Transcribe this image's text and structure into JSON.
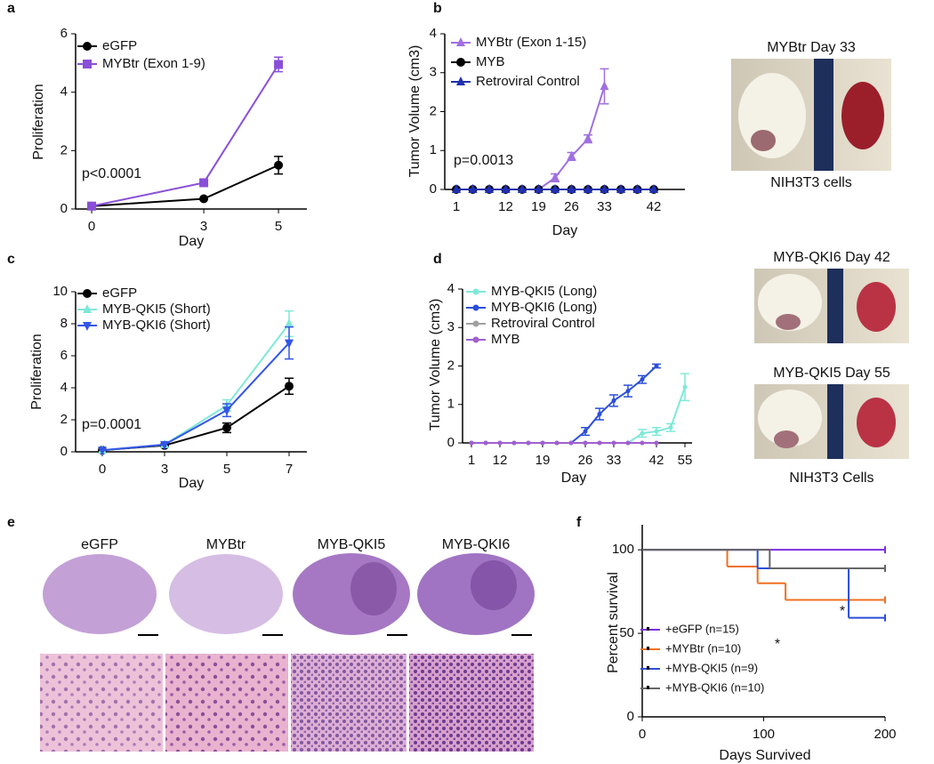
{
  "chart_data": [
    {
      "type": "line",
      "panel": "a",
      "xlabel": "Day",
      "ylabel": "Proliferation",
      "annotation": "p<0.0001",
      "x": [
        0,
        3,
        5
      ],
      "xlim": [
        -0.43,
        5.76
      ],
      "xticks": [
        0,
        3,
        5
      ],
      "ylim": [
        0,
        6
      ],
      "yticks": [
        0,
        2,
        4,
        6
      ],
      "series": [
        {
          "name": "eGFP",
          "color": "#000000",
          "marker": "circle",
          "values": [
            0.1,
            0.35,
            1.5
          ],
          "errors": [
            null,
            null,
            0.3
          ]
        },
        {
          "name": "MYBtr (Exon 1-9)",
          "color": "#8a4fd8",
          "marker": "square",
          "values": [
            0.1,
            0.9,
            4.95
          ],
          "errors": [
            null,
            null,
            0.25
          ]
        }
      ]
    },
    {
      "type": "line",
      "panel": "b",
      "xlabel": "Day",
      "ylabel": "Tumor Volume (cm3)",
      "annotation": "p=0.0013",
      "categories": [
        "1",
        null,
        null,
        "12",
        null,
        "19",
        null,
        "26",
        null,
        "33",
        null,
        null,
        "42"
      ],
      "ylim": [
        0,
        4
      ],
      "yticks": [
        0,
        1,
        2,
        3,
        4
      ],
      "series": [
        {
          "name": "MYBtr (Exon 1-15)",
          "color": "#a070e0",
          "marker": "triangle",
          "values": [
            0,
            0,
            0,
            0,
            0,
            0,
            0.3,
            0.85,
            1.3,
            2.65,
            null,
            null,
            null
          ],
          "errors": [
            null,
            null,
            null,
            null,
            null,
            null,
            0.1,
            0.1,
            0.1,
            0.45,
            null,
            null,
            null
          ]
        },
        {
          "name": "MYB",
          "color": "#000000",
          "marker": "circle",
          "values": [
            0,
            0,
            0,
            0,
            0,
            0,
            0,
            0,
            0,
            0,
            0,
            0,
            0
          ],
          "errors": []
        },
        {
          "name": "Retroviral Control",
          "color": "#2030b0",
          "marker": "triangle",
          "values": [
            0,
            0,
            0,
            0,
            0,
            0,
            0,
            0,
            0,
            0,
            0,
            0,
            0
          ],
          "errors": []
        }
      ]
    },
    {
      "type": "line",
      "panel": "c",
      "xlabel": "Day",
      "ylabel": "Proliferation",
      "annotation": "p=0.0001",
      "categories": [
        "0",
        "3",
        "5",
        "7"
      ],
      "ylim": [
        0,
        10
      ],
      "yticks": [
        0,
        2,
        4,
        6,
        8,
        10
      ],
      "series": [
        {
          "name": "eGFP",
          "color": "#000000",
          "marker": "circle",
          "values": [
            0.1,
            0.4,
            1.5,
            4.1
          ],
          "errors": [
            null,
            null,
            0.3,
            0.5
          ]
        },
        {
          "name": "MYB-QKI5 (Short)",
          "color": "#7fe8d8",
          "marker": "triangle",
          "values": [
            0.1,
            0.45,
            2.9,
            8
          ],
          "errors": [
            null,
            null,
            0.35,
            0.8
          ]
        },
        {
          "name": "MYB-QKI6 (Short)",
          "color": "#3355e8",
          "marker": "triangle-down",
          "values": [
            0.1,
            0.45,
            2.6,
            6.8
          ],
          "errors": [
            null,
            null,
            0.4,
            1
          ]
        }
      ]
    },
    {
      "type": "line",
      "panel": "d",
      "xlabel": "Day",
      "ylabel": "Tumor Volume (cm3)",
      "categories": [
        "1",
        null,
        "12",
        null,
        null,
        "19",
        null,
        null,
        "26",
        null,
        "33",
        null,
        null,
        "42",
        null,
        "55"
      ],
      "ylim": [
        0,
        4
      ],
      "yticks": [
        0,
        1,
        2,
        3,
        4
      ],
      "series": [
        {
          "name": "MYB-QKI5 (Long)",
          "color": "#7fe8d8",
          "marker": "circle",
          "values": [
            0,
            0,
            0,
            0,
            0,
            0,
            0,
            0,
            0,
            0,
            0,
            0,
            0.25,
            0.3,
            0.4,
            1.45
          ],
          "errors": [
            null,
            null,
            null,
            null,
            null,
            null,
            null,
            null,
            null,
            null,
            null,
            null,
            0.1,
            0.1,
            0.1,
            0.35
          ]
        },
        {
          "name": "MYB-QKI6 (Long)",
          "color": "#2b4fd8",
          "marker": "circle",
          "values": [
            0,
            0,
            0,
            0,
            0,
            0,
            0,
            0,
            0.3,
            0.75,
            1.1,
            1.35,
            1.65,
            2,
            null,
            null
          ],
          "errors": [
            null,
            null,
            null,
            null,
            null,
            null,
            null,
            null,
            0.1,
            0.15,
            0.15,
            0.15,
            0.1,
            0.05,
            null,
            null
          ]
        },
        {
          "name": "Retroviral Control",
          "color": "#a0a0a0",
          "marker": "circle",
          "values": [
            0,
            0,
            0,
            0,
            0,
            0,
            0,
            0,
            0,
            0,
            0,
            0,
            0,
            0,
            null,
            null
          ],
          "errors": []
        },
        {
          "name": "MYB",
          "color": "#a060d0",
          "marker": "circle",
          "values": [
            0,
            0,
            0,
            0,
            0,
            0,
            0,
            0,
            0,
            0,
            0,
            0,
            0,
            0,
            null,
            null
          ],
          "errors": []
        }
      ]
    },
    {
      "type": "step",
      "panel": "f",
      "xlabel": "Days Survived",
      "ylabel": "Percent survival",
      "annotations": [
        "*",
        "*"
      ],
      "xlim": [
        0,
        200
      ],
      "xticks": [
        0,
        100,
        200
      ],
      "ylim": [
        0,
        115
      ],
      "yticks": [
        0,
        50,
        100
      ],
      "series": [
        {
          "name": "+eGFP (n=15)",
          "color": "#7b2fe0",
          "x": [
            0,
            200
          ],
          "values": [
            100,
            100
          ]
        },
        {
          "name": "+MYBtr (n=10)",
          "color": "#f07020",
          "x": [
            0,
            70,
            95,
            118,
            200
          ],
          "values": [
            100,
            90,
            80,
            70,
            70
          ]
        },
        {
          "name": "+MYB-QKI5 (n=9)",
          "color": "#2a4fd8",
          "x": [
            0,
            95,
            170,
            200
          ],
          "values": [
            100,
            88.9,
            59.3,
            59.3
          ]
        },
        {
          "name": "+MYB-QKI6 (n=10)",
          "color": "#666666",
          "x": [
            0,
            105,
            200
          ],
          "values": [
            100,
            88.9,
            88.9
          ]
        }
      ]
    }
  ],
  "photos": {
    "titles": [
      "MYBtr Day 33",
      "MYB-QKI6 Day 42",
      "MYB-QKI5 Day 55"
    ],
    "captions": [
      "NIH3T3 cells",
      "NIH3T3 Cells"
    ]
  },
  "histology": {
    "panel": "e",
    "labels": [
      "eGFP",
      "MYBtr",
      "MYB-QKI5",
      "MYB-QKI6"
    ]
  }
}
